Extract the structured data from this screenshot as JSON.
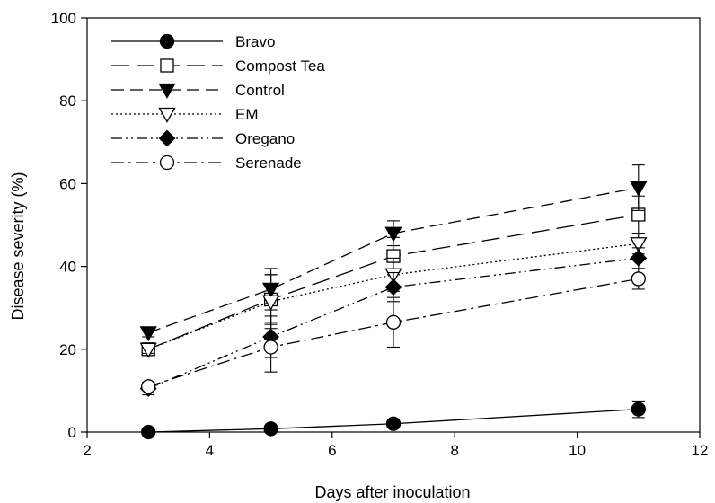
{
  "chart_data": {
    "type": "line",
    "title": "",
    "xlabel": "Days after inoculation",
    "ylabel": "Disease severity (%)",
    "xlim": [
      2,
      12
    ],
    "ylim": [
      0,
      100
    ],
    "x_ticks": [
      2,
      4,
      6,
      8,
      10,
      12
    ],
    "y_ticks": [
      0,
      20,
      40,
      60,
      80,
      100
    ],
    "grid": false,
    "legend_position": "top-left",
    "x": [
      3,
      5,
      7,
      11
    ],
    "series": [
      {
        "name": "Bravo",
        "values": [
          0.0,
          0.8,
          2.0,
          5.5
        ],
        "errors": [
          0.5,
          0.8,
          0.8,
          2.0
        ],
        "line_style": "solid",
        "marker": "circle-filled"
      },
      {
        "name": "Compost Tea",
        "values": [
          20.0,
          32.0,
          42.5,
          52.5
        ],
        "errors": [
          1.0,
          6.0,
          4.5,
          4.5
        ],
        "line_style": "long-dash",
        "marker": "square-open"
      },
      {
        "name": "Control",
        "values": [
          24.0,
          34.5,
          48.0,
          59.0
        ],
        "errors": [
          1.0,
          5.0,
          3.0,
          5.5
        ],
        "line_style": "dash",
        "marker": "triangle-down-filled"
      },
      {
        "name": "EM",
        "values": [
          20.0,
          31.5,
          38.0,
          45.5
        ],
        "errors": [
          1.0,
          6.5,
          4.0,
          2.5
        ],
        "line_style": "dotted",
        "marker": "triangle-down-open"
      },
      {
        "name": "Oregano",
        "values": [
          10.5,
          23.0,
          35.0,
          42.0
        ],
        "errors": [
          1.5,
          5.0,
          3.5,
          2.5
        ],
        "line_style": "dash-dot-dot",
        "marker": "diamond-filled"
      },
      {
        "name": "Serenade",
        "values": [
          11.0,
          20.5,
          26.5,
          37.0
        ],
        "errors": [
          1.0,
          6.0,
          6.0,
          2.5
        ],
        "line_style": "dash-dot",
        "marker": "circle-open"
      }
    ]
  }
}
